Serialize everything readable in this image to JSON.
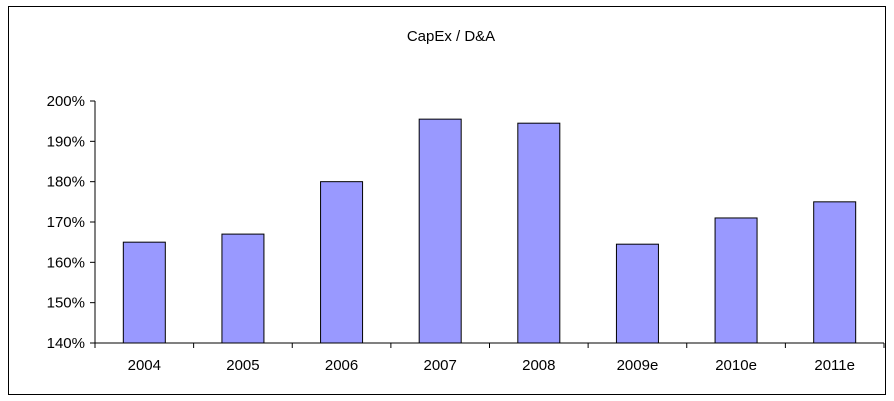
{
  "chart_data": {
    "type": "bar",
    "title": "CapEx / D&A",
    "xlabel": "",
    "ylabel": "",
    "categories": [
      "2004",
      "2005",
      "2006",
      "2007",
      "2008",
      "2009e",
      "2010e",
      "2011e"
    ],
    "values": [
      165,
      167,
      180,
      195.5,
      194.5,
      164.5,
      171,
      175
    ],
    "value_format": "percent",
    "ylim": [
      140,
      200
    ],
    "yticks": [
      140,
      150,
      160,
      170,
      180,
      190,
      200
    ],
    "ytick_labels": [
      "140%",
      "150%",
      "160%",
      "170%",
      "180%",
      "190%",
      "200%"
    ],
    "grid": false,
    "legend": "none",
    "bar_color": "#9999ff",
    "bar_edge_color": "#000000"
  }
}
